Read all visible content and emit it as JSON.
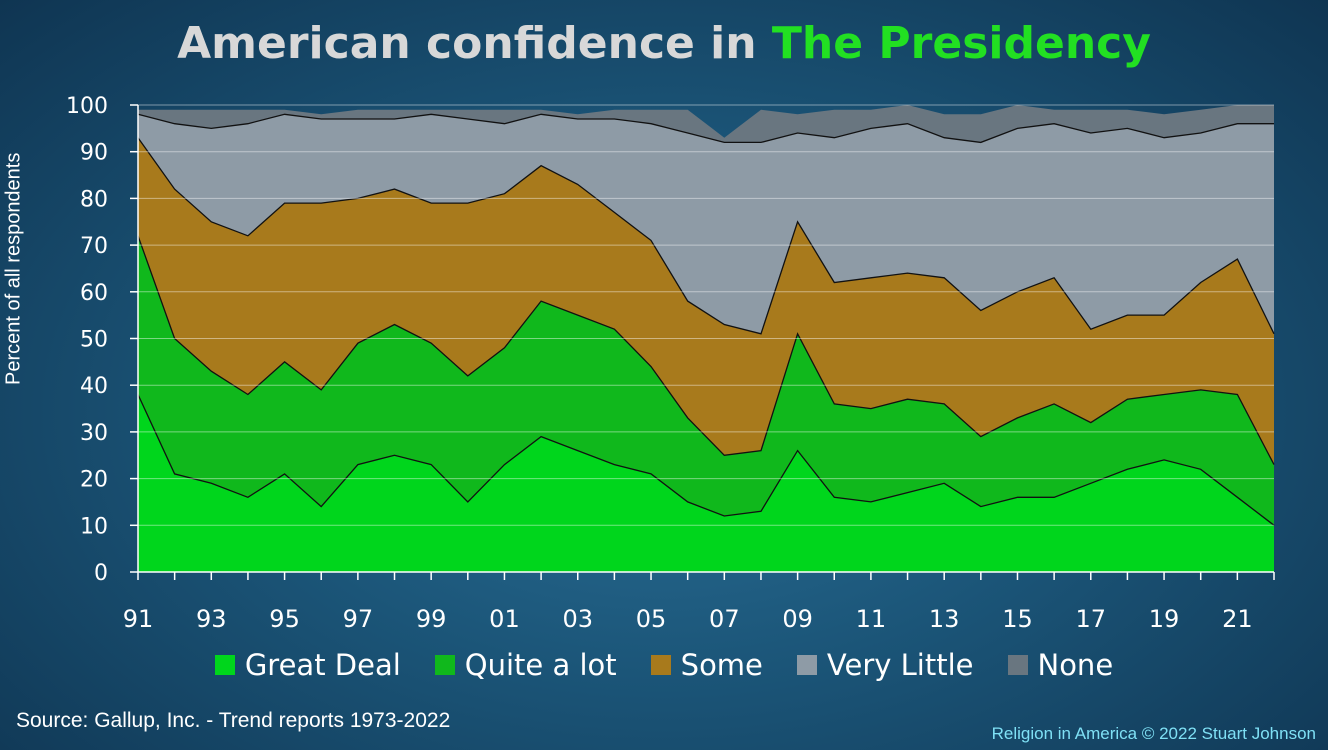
{
  "title": {
    "part1": "American confidence in ",
    "part2": "The Presidency"
  },
  "source": "Source: Gallup, Inc. - Trend reports 1973-2022",
  "credit": "Religion in America © 2022 Stuart Johnson",
  "colors": {
    "great_deal": "#00d61c",
    "quite_a_lot": "#10b81c",
    "some": "#a87a1c",
    "very_little": "#8e9ba6",
    "none": "#697680"
  },
  "chart_data": {
    "type": "area",
    "stacked": true,
    "ylabel": "Percent of all respondents",
    "xlabel": "",
    "ylim": [
      0,
      100
    ],
    "yticks": [
      0,
      10,
      20,
      30,
      40,
      50,
      60,
      70,
      80,
      90,
      100
    ],
    "x": [
      1991,
      1992,
      1993,
      1994,
      1995,
      1996,
      1997,
      1998,
      1999,
      2000,
      2001,
      2002,
      2003,
      2004,
      2005,
      2006,
      2007,
      2008,
      2009,
      2010,
      2011,
      2012,
      2013,
      2014,
      2015,
      2016,
      2017,
      2018,
      2019,
      2020,
      2021,
      2022
    ],
    "xtick_labels": [
      "91",
      "93",
      "95",
      "97",
      "99",
      "01",
      "03",
      "05",
      "07",
      "09",
      "11",
      "13",
      "15",
      "17",
      "19",
      "21"
    ],
    "xtick_years": [
      1991,
      1993,
      1995,
      1997,
      1999,
      2001,
      2003,
      2005,
      2007,
      2009,
      2011,
      2013,
      2015,
      2017,
      2019,
      2021
    ],
    "legend": {
      "position": "bottom"
    },
    "series": [
      {
        "name": "Great Deal",
        "color_key": "great_deal",
        "values": [
          38,
          21,
          19,
          16,
          21,
          14,
          23,
          25,
          23,
          15,
          23,
          29,
          26,
          23,
          21,
          15,
          12,
          13,
          26,
          16,
          15,
          17,
          19,
          14,
          16,
          16,
          19,
          22,
          24,
          22,
          16,
          10
        ]
      },
      {
        "name": "Quite a lot",
        "color_key": "quite_a_lot",
        "values": [
          34,
          29,
          24,
          22,
          24,
          25,
          26,
          28,
          26,
          27,
          25,
          29,
          29,
          29,
          23,
          18,
          13,
          13,
          25,
          20,
          20,
          20,
          17,
          15,
          17,
          20,
          13,
          15,
          14,
          17,
          22,
          13
        ]
      },
      {
        "name": "Some",
        "color_key": "some",
        "values": [
          21,
          32,
          32,
          34,
          34,
          40,
          31,
          29,
          30,
          37,
          33,
          29,
          28,
          25,
          27,
          25,
          28,
          25,
          24,
          26,
          28,
          27,
          27,
          27,
          27,
          27,
          20,
          18,
          17,
          23,
          29,
          28
        ]
      },
      {
        "name": "Very Little",
        "color_key": "very_little",
        "values": [
          5,
          14,
          20,
          24,
          19,
          18,
          17,
          15,
          19,
          18,
          15,
          11,
          14,
          20,
          25,
          36,
          39,
          41,
          19,
          31,
          32,
          32,
          30,
          36,
          35,
          33,
          42,
          40,
          38,
          32,
          29,
          45
        ]
      },
      {
        "name": "None",
        "color_key": "none",
        "values": [
          1,
          3,
          4,
          3,
          1,
          1,
          2,
          2,
          1,
          2,
          3,
          1,
          1,
          2,
          3,
          5,
          1,
          7,
          4,
          6,
          4,
          4,
          5,
          6,
          5,
          3,
          5,
          4,
          5,
          5,
          4,
          4
        ]
      }
    ]
  }
}
